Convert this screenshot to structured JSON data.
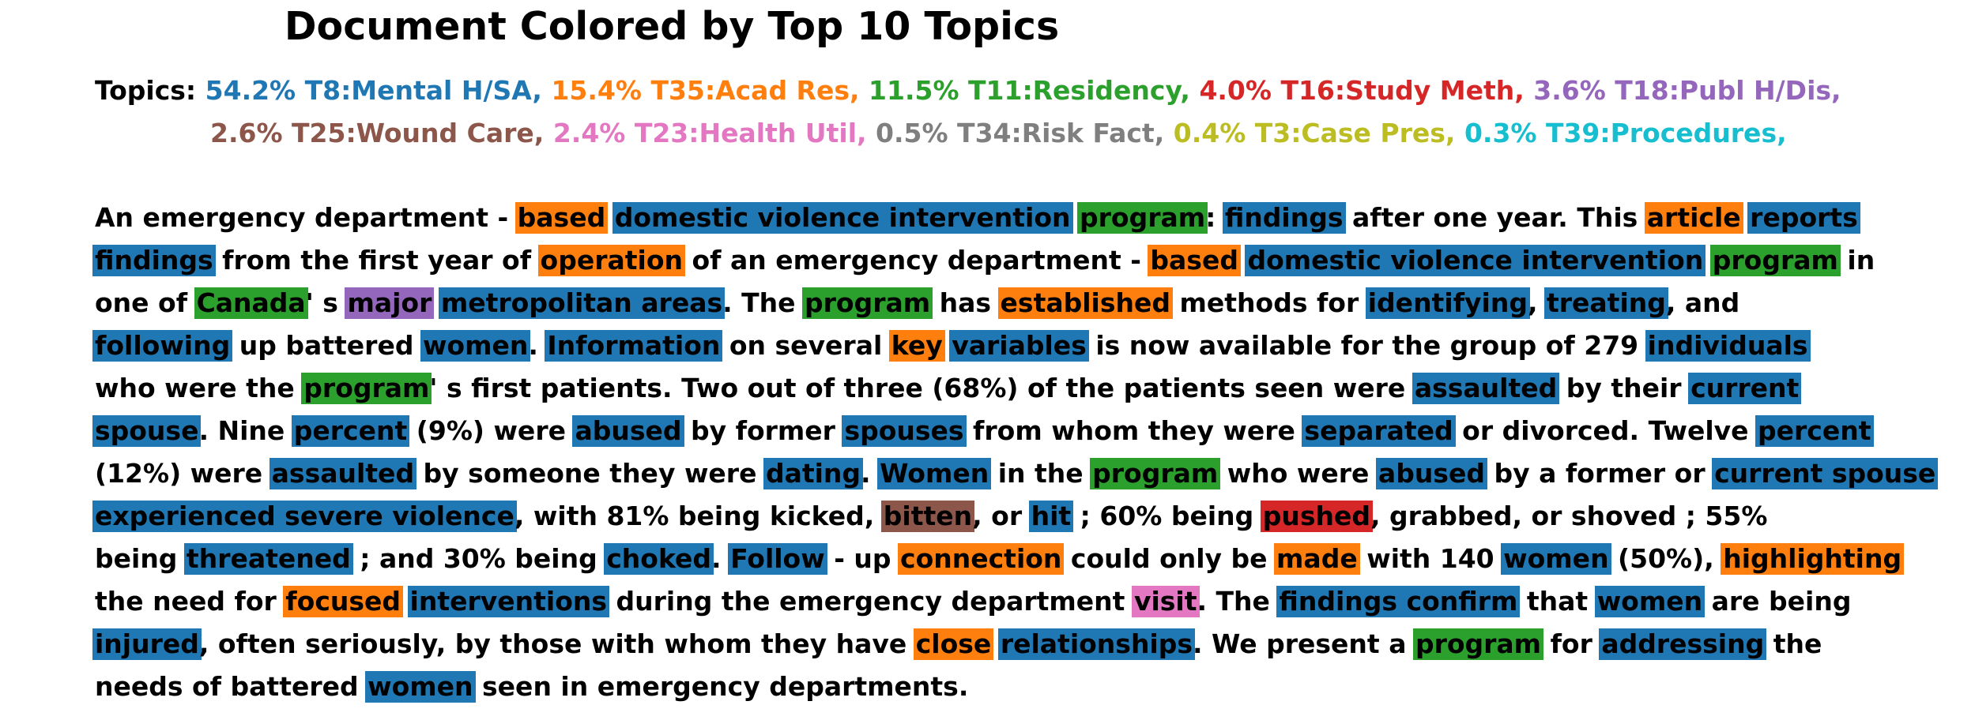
{
  "title": "Document Colored by Top 10 Topics",
  "topics_label": "Topics:",
  "topics": [
    {
      "id": "T8",
      "pct": "54.2%",
      "label": "54.2% T8:Mental H/SA,",
      "color": "#1f77b4"
    },
    {
      "id": "T35",
      "pct": "15.4%",
      "label": "15.4% T35:Acad Res,",
      "color": "#ff7f0e"
    },
    {
      "id": "T11",
      "pct": "11.5%",
      "label": "11.5% T11:Residency,",
      "color": "#2ca02c"
    },
    {
      "id": "T16",
      "pct": "4.0%",
      "label": "4.0% T16:Study Meth,",
      "color": "#d62728"
    },
    {
      "id": "T18",
      "pct": "3.6%",
      "label": "3.6% T18:Publ H/Dis,",
      "color": "#9467bd"
    },
    {
      "id": "T25",
      "pct": "2.6%",
      "label": "2.6% T25:Wound Care,",
      "color": "#8c564b"
    },
    {
      "id": "T23",
      "pct": "2.4%",
      "label": "2.4% T23:Health Util,",
      "color": "#e377c2"
    },
    {
      "id": "T34",
      "pct": "0.5%",
      "label": "0.5% T34:Risk Fact,",
      "color": "#7f7f7f"
    },
    {
      "id": "T3",
      "pct": "0.4%",
      "label": "0.4% T3:Case Pres,",
      "color": "#bcbd22"
    },
    {
      "id": "T39",
      "pct": "0.3%",
      "label": "0.3% T39:Procedures,",
      "color": "#17becf"
    }
  ],
  "document_lines": [
    [
      [
        "An emergency department - ",
        null
      ],
      [
        "based",
        "T35"
      ],
      [
        " ",
        null
      ],
      [
        "domestic violence intervention",
        "T8"
      ],
      [
        " ",
        null
      ],
      [
        "program",
        "T11"
      ],
      [
        ": ",
        null
      ],
      [
        "findings",
        "T8"
      ],
      [
        " after one year. This ",
        null
      ],
      [
        "article",
        "T35"
      ],
      [
        " ",
        null
      ],
      [
        "reports",
        "T8"
      ]
    ],
    [
      [
        "findings",
        "T8"
      ],
      [
        " from the first year of ",
        null
      ],
      [
        "operation",
        "T35"
      ],
      [
        " of an emergency department - ",
        null
      ],
      [
        "based",
        "T35"
      ],
      [
        " ",
        null
      ],
      [
        "domestic violence intervention",
        "T8"
      ],
      [
        " ",
        null
      ],
      [
        "program",
        "T11"
      ],
      [
        " in",
        null
      ]
    ],
    [
      [
        "one of ",
        null
      ],
      [
        "Canada",
        "T11"
      ],
      [
        "' s ",
        null
      ],
      [
        "major",
        "T18"
      ],
      [
        " ",
        null
      ],
      [
        "metropolitan areas",
        "T8"
      ],
      [
        ". The ",
        null
      ],
      [
        "program",
        "T11"
      ],
      [
        " has ",
        null
      ],
      [
        "established",
        "T35"
      ],
      [
        " methods for ",
        null
      ],
      [
        "identifying",
        "T8"
      ],
      [
        ", ",
        null
      ],
      [
        "treating",
        "T8"
      ],
      [
        ", and",
        null
      ]
    ],
    [
      [
        "following",
        "T8"
      ],
      [
        " up battered ",
        null
      ],
      [
        "women",
        "T8"
      ],
      [
        ". ",
        null
      ],
      [
        "Information",
        "T8"
      ],
      [
        " on several ",
        null
      ],
      [
        "key",
        "T35"
      ],
      [
        " ",
        null
      ],
      [
        "variables",
        "T8"
      ],
      [
        " is now available for the group of 279 ",
        null
      ],
      [
        "individuals",
        "T8"
      ]
    ],
    [
      [
        "who were the ",
        null
      ],
      [
        "program",
        "T11"
      ],
      [
        "' s first patients. Two out of three (68%) of the patients seen were ",
        null
      ],
      [
        "assaulted",
        "T8"
      ],
      [
        " by their ",
        null
      ],
      [
        "current",
        "T8"
      ]
    ],
    [
      [
        "spouse",
        "T8"
      ],
      [
        ". Nine ",
        null
      ],
      [
        "percent",
        "T8"
      ],
      [
        " (9%) were ",
        null
      ],
      [
        "abused",
        "T8"
      ],
      [
        " by former ",
        null
      ],
      [
        "spouses",
        "T8"
      ],
      [
        " from whom they were ",
        null
      ],
      [
        "separated",
        "T8"
      ],
      [
        " or divorced. Twelve ",
        null
      ],
      [
        "percent",
        "T8"
      ]
    ],
    [
      [
        "(12%) were ",
        null
      ],
      [
        "assaulted",
        "T8"
      ],
      [
        " by someone they were ",
        null
      ],
      [
        "dating",
        "T8"
      ],
      [
        ". ",
        null
      ],
      [
        "Women",
        "T8"
      ],
      [
        " in the ",
        null
      ],
      [
        "program",
        "T11"
      ],
      [
        " who were ",
        null
      ],
      [
        "abused",
        "T8"
      ],
      [
        " by a former or ",
        null
      ],
      [
        "current spouse",
        "T8"
      ]
    ],
    [
      [
        "experienced severe violence",
        "T8"
      ],
      [
        ", with 81% being kicked, ",
        null
      ],
      [
        "bitten",
        "T25"
      ],
      [
        ", or ",
        null
      ],
      [
        "hit",
        "T8"
      ],
      [
        " ; 60% being ",
        null
      ],
      [
        "pushed",
        "T16"
      ],
      [
        ", grabbed, or shoved ; 55%",
        null
      ]
    ],
    [
      [
        "being ",
        null
      ],
      [
        "threatened",
        "T8"
      ],
      [
        " ; and 30% being ",
        null
      ],
      [
        "choked",
        "T8"
      ],
      [
        ". ",
        null
      ],
      [
        "Follow",
        "T8"
      ],
      [
        " - up ",
        null
      ],
      [
        "connection",
        "T35"
      ],
      [
        " could only be ",
        null
      ],
      [
        "made",
        "T35"
      ],
      [
        " with 140 ",
        null
      ],
      [
        "women",
        "T8"
      ],
      [
        " (50%), ",
        null
      ],
      [
        "highlighting",
        "T35"
      ]
    ],
    [
      [
        "the need for ",
        null
      ],
      [
        "focused",
        "T35"
      ],
      [
        " ",
        null
      ],
      [
        "interventions",
        "T8"
      ],
      [
        " during the emergency department ",
        null
      ],
      [
        "visit",
        "T23"
      ],
      [
        ". The ",
        null
      ],
      [
        "findings confirm",
        "T8"
      ],
      [
        " that ",
        null
      ],
      [
        "women",
        "T8"
      ],
      [
        " are being",
        null
      ]
    ],
    [
      [
        "injured",
        "T8"
      ],
      [
        ", often seriously, by those with whom they have ",
        null
      ],
      [
        "close",
        "T35"
      ],
      [
        " ",
        null
      ],
      [
        "relationships",
        "T8"
      ],
      [
        ". We present a ",
        null
      ],
      [
        "program",
        "T11"
      ],
      [
        " for ",
        null
      ],
      [
        "addressing",
        "T8"
      ],
      [
        " the",
        null
      ]
    ],
    [
      [
        "needs of battered ",
        null
      ],
      [
        "women",
        "T8"
      ],
      [
        " seen in emergency departments.",
        null
      ]
    ]
  ]
}
